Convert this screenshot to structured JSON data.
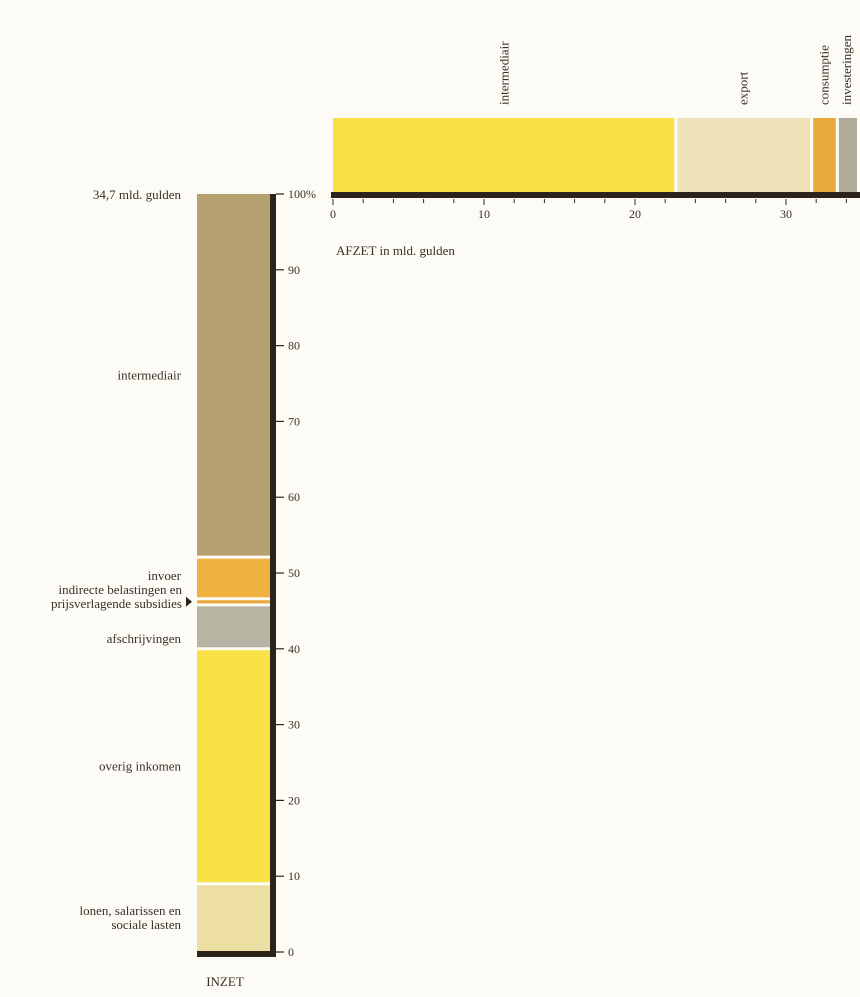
{
  "chart_data": [
    {
      "type": "stacked-bar-vertical",
      "xlabel": "INZET",
      "total_label": "34,7 mld. gulden",
      "ylim": [
        0,
        100
      ],
      "y_ticks": [
        0,
        10,
        20,
        30,
        40,
        50,
        60,
        70,
        80,
        90,
        100
      ],
      "y_tick_labels": [
        "0",
        "10",
        "20",
        "30",
        "40",
        "50",
        "60",
        "70",
        "80",
        "90",
        "100%"
      ],
      "segments": [
        {
          "label": "lonen, salarissen en sociale lasten",
          "value": 9.0,
          "color": "#eddfa4"
        },
        {
          "label": "overig inkomen",
          "value": 31.0,
          "color": "#f7e145"
        },
        {
          "label": "afschrijvingen",
          "value": 5.8,
          "color": "#b7b4a3"
        },
        {
          "label": "indirecte belastingen en prijsverlagende subsidies",
          "value": 0.8,
          "color": "#e8a93a"
        },
        {
          "label": "invoer",
          "value": 5.5,
          "color": "#efb140"
        },
        {
          "label": "intermediair",
          "value": 47.9,
          "color": "#b5a06f"
        }
      ]
    },
    {
      "type": "stacked-bar-horizontal",
      "xlabel": "AFZET in mld. gulden",
      "xlim": [
        0,
        34.7
      ],
      "x_ticks": [
        0,
        10,
        20,
        30
      ],
      "x_tick_labels": [
        "0",
        "10",
        "20",
        "30"
      ],
      "segments": [
        {
          "label": "intermediair",
          "value": 22.7,
          "color": "#f7e145"
        },
        {
          "label": "export",
          "value": 9.0,
          "color": "#eee3b8"
        },
        {
          "label": "consumptie",
          "value": 1.7,
          "color": "#e8a93a"
        },
        {
          "label": "investeringen",
          "value": 1.3,
          "color": "#b0ab97"
        }
      ]
    }
  ]
}
